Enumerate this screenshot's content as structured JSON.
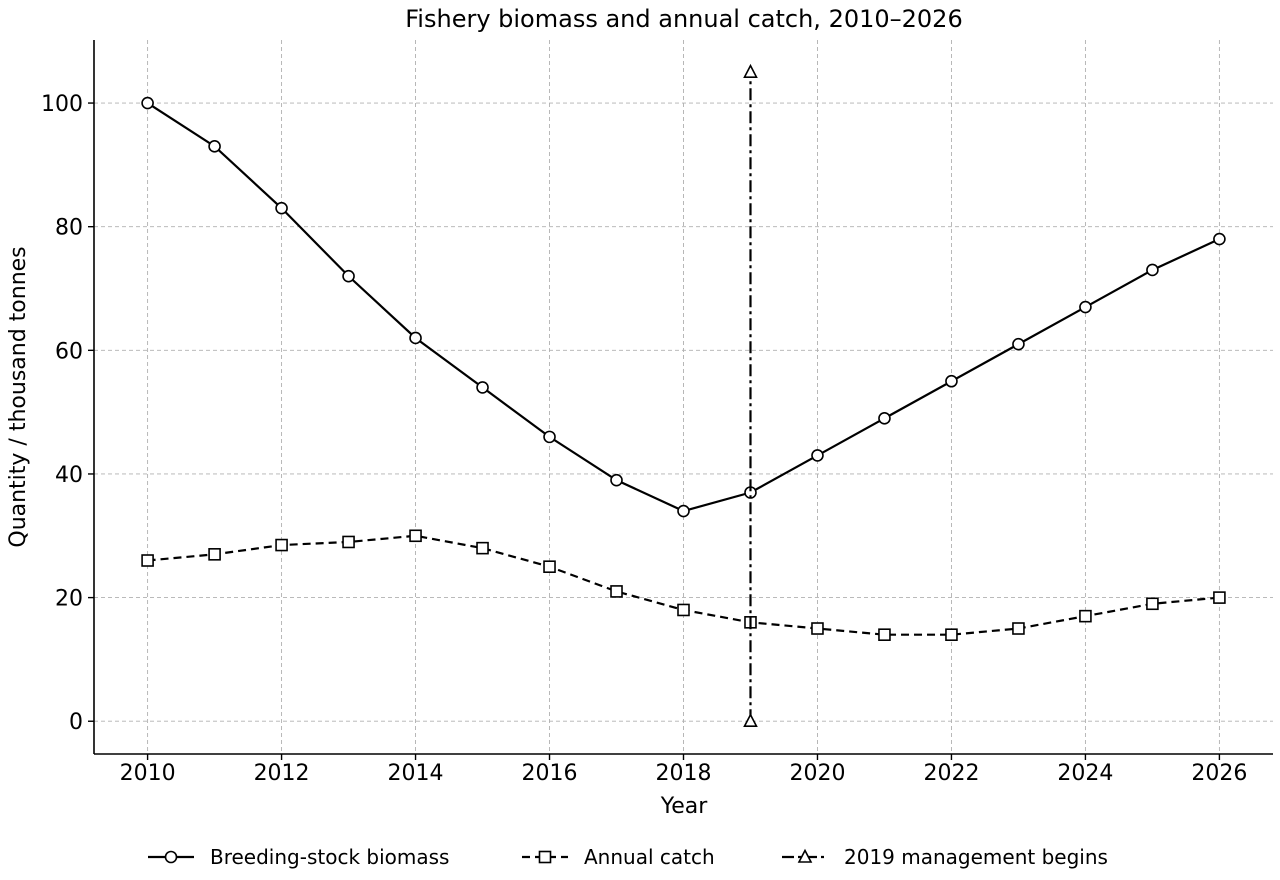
{
  "chart_data": {
    "type": "line",
    "title": "Fishery biomass and annual catch, 2010–2026",
    "xlabel": "Year",
    "ylabel": "Quantity / thousand tonnes",
    "xlim": [
      2009.2,
      2026.8
    ],
    "ylim": [
      -5.3,
      110.2
    ],
    "x_ticks": [
      2010,
      2012,
      2014,
      2016,
      2018,
      2020,
      2022,
      2024,
      2026
    ],
    "y_ticks": [
      0,
      20,
      40,
      60,
      80,
      100
    ],
    "grid": true,
    "legend_position": "bottom-center",
    "x": [
      2010,
      2011,
      2012,
      2013,
      2014,
      2015,
      2016,
      2017,
      2018,
      2019,
      2020,
      2021,
      2022,
      2023,
      2024,
      2025,
      2026
    ],
    "series": [
      {
        "name": "Breeding-stock biomass",
        "line_style": "solid",
        "marker": "circle",
        "color": "#000000",
        "values": [
          100,
          93,
          83,
          72,
          62,
          54,
          46,
          39,
          34,
          37,
          43,
          49,
          55,
          61,
          67,
          73,
          78
        ]
      },
      {
        "name": "Annual catch",
        "line_style": "dashed",
        "marker": "square",
        "color": "#000000",
        "values": [
          26,
          27,
          28.5,
          29,
          30,
          28,
          25,
          21,
          18,
          16,
          15,
          14,
          14,
          15,
          17,
          19,
          20
        ]
      },
      {
        "name": "2019 management begins",
        "line_style": "dashdot",
        "marker": "triangle",
        "color": "#000000",
        "x": [
          2019,
          2019
        ],
        "values": [
          0,
          105
        ]
      }
    ]
  }
}
